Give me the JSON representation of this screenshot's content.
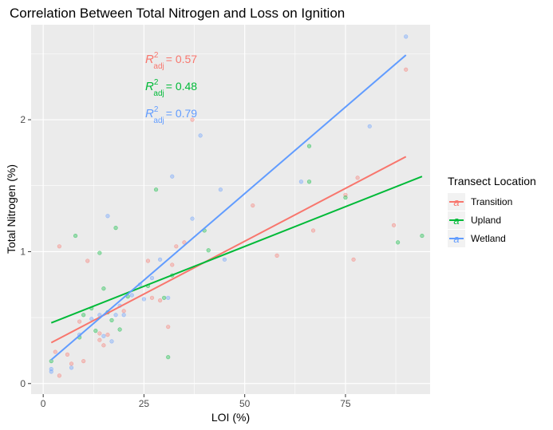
{
  "chart_data": {
    "type": "scatter",
    "title": "Correlation Between Total Nitrogen and Loss on Ignition",
    "xlabel": "LOI (%)",
    "ylabel": "Total Nitrogen (%)",
    "xlim": [
      -3,
      96
    ],
    "ylim": [
      -0.08,
      2.72
    ],
    "xticks": [
      0,
      25,
      50,
      75
    ],
    "yticks": [
      0,
      1,
      2
    ],
    "xtick_labels": [
      "0",
      "25",
      "50",
      "75"
    ],
    "ytick_labels": [
      "0",
      "1",
      "2"
    ],
    "grid": true,
    "legend": {
      "title": "Transect Location",
      "position": "right",
      "glyph": "a"
    },
    "series": [
      {
        "name": "Transition",
        "color": "#F8766D",
        "r2_prefix": "R",
        "r2_sup": "2",
        "r2_sub": "adj",
        "r2_value": "= 0.57",
        "fit": {
          "x": [
            2,
            90
          ],
          "y": [
            0.31,
            1.72
          ]
        },
        "points": [
          [
            3,
            0.24
          ],
          [
            4,
            1.04
          ],
          [
            4,
            0.06
          ],
          [
            6,
            0.22
          ],
          [
            7,
            0.15
          ],
          [
            9,
            0.47
          ],
          [
            10,
            0.17
          ],
          [
            11,
            0.93
          ],
          [
            14,
            0.38
          ],
          [
            14,
            0.33
          ],
          [
            15,
            0.29
          ],
          [
            16,
            0.37
          ],
          [
            20,
            0.55
          ],
          [
            26,
            0.93
          ],
          [
            27,
            0.65
          ],
          [
            29,
            0.63
          ],
          [
            31,
            0.43
          ],
          [
            32,
            0.9
          ],
          [
            33,
            1.04
          ],
          [
            35,
            1.07
          ],
          [
            37,
            2.0
          ],
          [
            52,
            1.35
          ],
          [
            58,
            0.97
          ],
          [
            67,
            1.16
          ],
          [
            75,
            1.43
          ],
          [
            77,
            0.94
          ],
          [
            78,
            1.56
          ],
          [
            87,
            1.2
          ],
          [
            90,
            2.38
          ]
        ]
      },
      {
        "name": "Upland",
        "color": "#00BA38",
        "r2_prefix": "R",
        "r2_sup": "2",
        "r2_sub": "adj",
        "r2_value": "= 0.48",
        "fit": {
          "x": [
            2,
            94
          ],
          "y": [
            0.46,
            1.57
          ]
        },
        "points": [
          [
            2,
            0.17
          ],
          [
            8,
            1.12
          ],
          [
            9,
            0.35
          ],
          [
            10,
            0.52
          ],
          [
            12,
            0.57
          ],
          [
            13,
            0.4
          ],
          [
            14,
            0.99
          ],
          [
            15,
            0.72
          ],
          [
            16,
            0.54
          ],
          [
            17,
            0.48
          ],
          [
            18,
            1.18
          ],
          [
            19,
            0.41
          ],
          [
            21,
            0.66
          ],
          [
            26,
            0.74
          ],
          [
            28,
            1.47
          ],
          [
            30,
            0.65
          ],
          [
            31,
            0.2
          ],
          [
            32,
            0.82
          ],
          [
            40,
            1.16
          ],
          [
            41,
            1.01
          ],
          [
            66,
            1.53
          ],
          [
            66,
            1.8
          ],
          [
            75,
            1.41
          ],
          [
            88,
            1.07
          ],
          [
            94,
            1.12
          ]
        ]
      },
      {
        "name": "Wetland",
        "color": "#619CFF",
        "r2_prefix": "R",
        "r2_sup": "2",
        "r2_sub": "adj",
        "r2_value": "= 0.79",
        "fit": {
          "x": [
            2,
            90
          ],
          "y": [
            0.18,
            2.49
          ]
        },
        "points": [
          [
            2,
            0.09
          ],
          [
            2,
            0.11
          ],
          [
            7,
            0.12
          ],
          [
            9,
            0.37
          ],
          [
            12,
            0.49
          ],
          [
            14,
            0.52
          ],
          [
            15,
            0.36
          ],
          [
            16,
            1.27
          ],
          [
            17,
            0.32
          ],
          [
            18,
            0.52
          ],
          [
            19,
            0.59
          ],
          [
            20,
            0.52
          ],
          [
            22,
            0.67
          ],
          [
            24,
            0.75
          ],
          [
            25,
            0.64
          ],
          [
            27,
            0.8
          ],
          [
            29,
            0.94
          ],
          [
            31,
            0.65
          ],
          [
            32,
            1.57
          ],
          [
            37,
            1.25
          ],
          [
            39,
            1.88
          ],
          [
            44,
            1.47
          ],
          [
            45,
            0.94
          ],
          [
            64,
            1.53
          ],
          [
            81,
            1.95
          ],
          [
            90,
            2.63
          ]
        ]
      }
    ]
  }
}
